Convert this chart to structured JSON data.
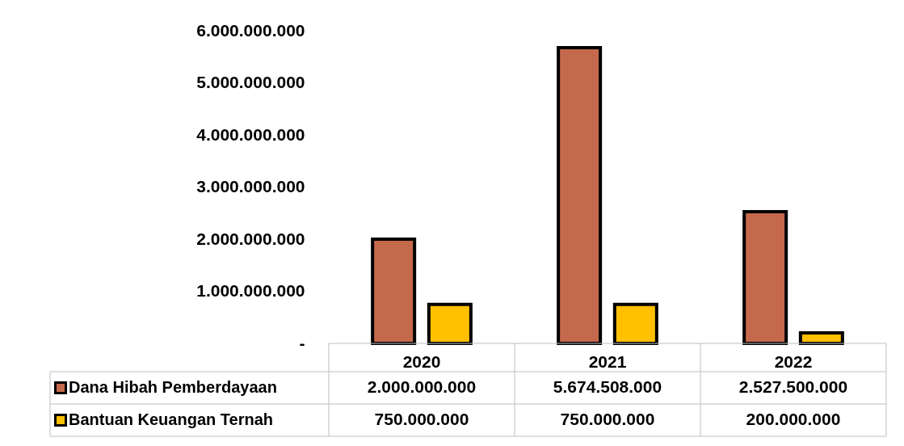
{
  "chart_data": {
    "type": "bar",
    "categories": [
      "2020",
      "2021",
      "2022"
    ],
    "series": [
      {
        "name": "Dana Hibah Pemberdayaan",
        "color": "#c5694d",
        "values": [
          2000000000,
          5674508000,
          2527500000
        ],
        "value_labels": [
          "2.000.000.000",
          "5.674.508.000",
          "2.527.500.000"
        ]
      },
      {
        "name": "Bantuan Keuangan Ternah",
        "color": "#ffc000",
        "values": [
          750000000,
          750000000,
          200000000
        ],
        "value_labels": [
          "750.000.000",
          "750.000.000",
          "200.000.000"
        ]
      }
    ],
    "ylim": [
      0,
      6000000000
    ],
    "yticks": [
      {
        "value": 0,
        "label": "-"
      },
      {
        "value": 1000000000,
        "label": "1.000.000.000"
      },
      {
        "value": 2000000000,
        "label": "2.000.000.000"
      },
      {
        "value": 3000000000,
        "label": "3.000.000.000"
      },
      {
        "value": 4000000000,
        "label": "4.000.000.000"
      },
      {
        "value": 5000000000,
        "label": "5.000.000.000"
      },
      {
        "value": 6000000000,
        "label": "6.000.000.000"
      }
    ],
    "grid": false,
    "legend": "bottom"
  }
}
